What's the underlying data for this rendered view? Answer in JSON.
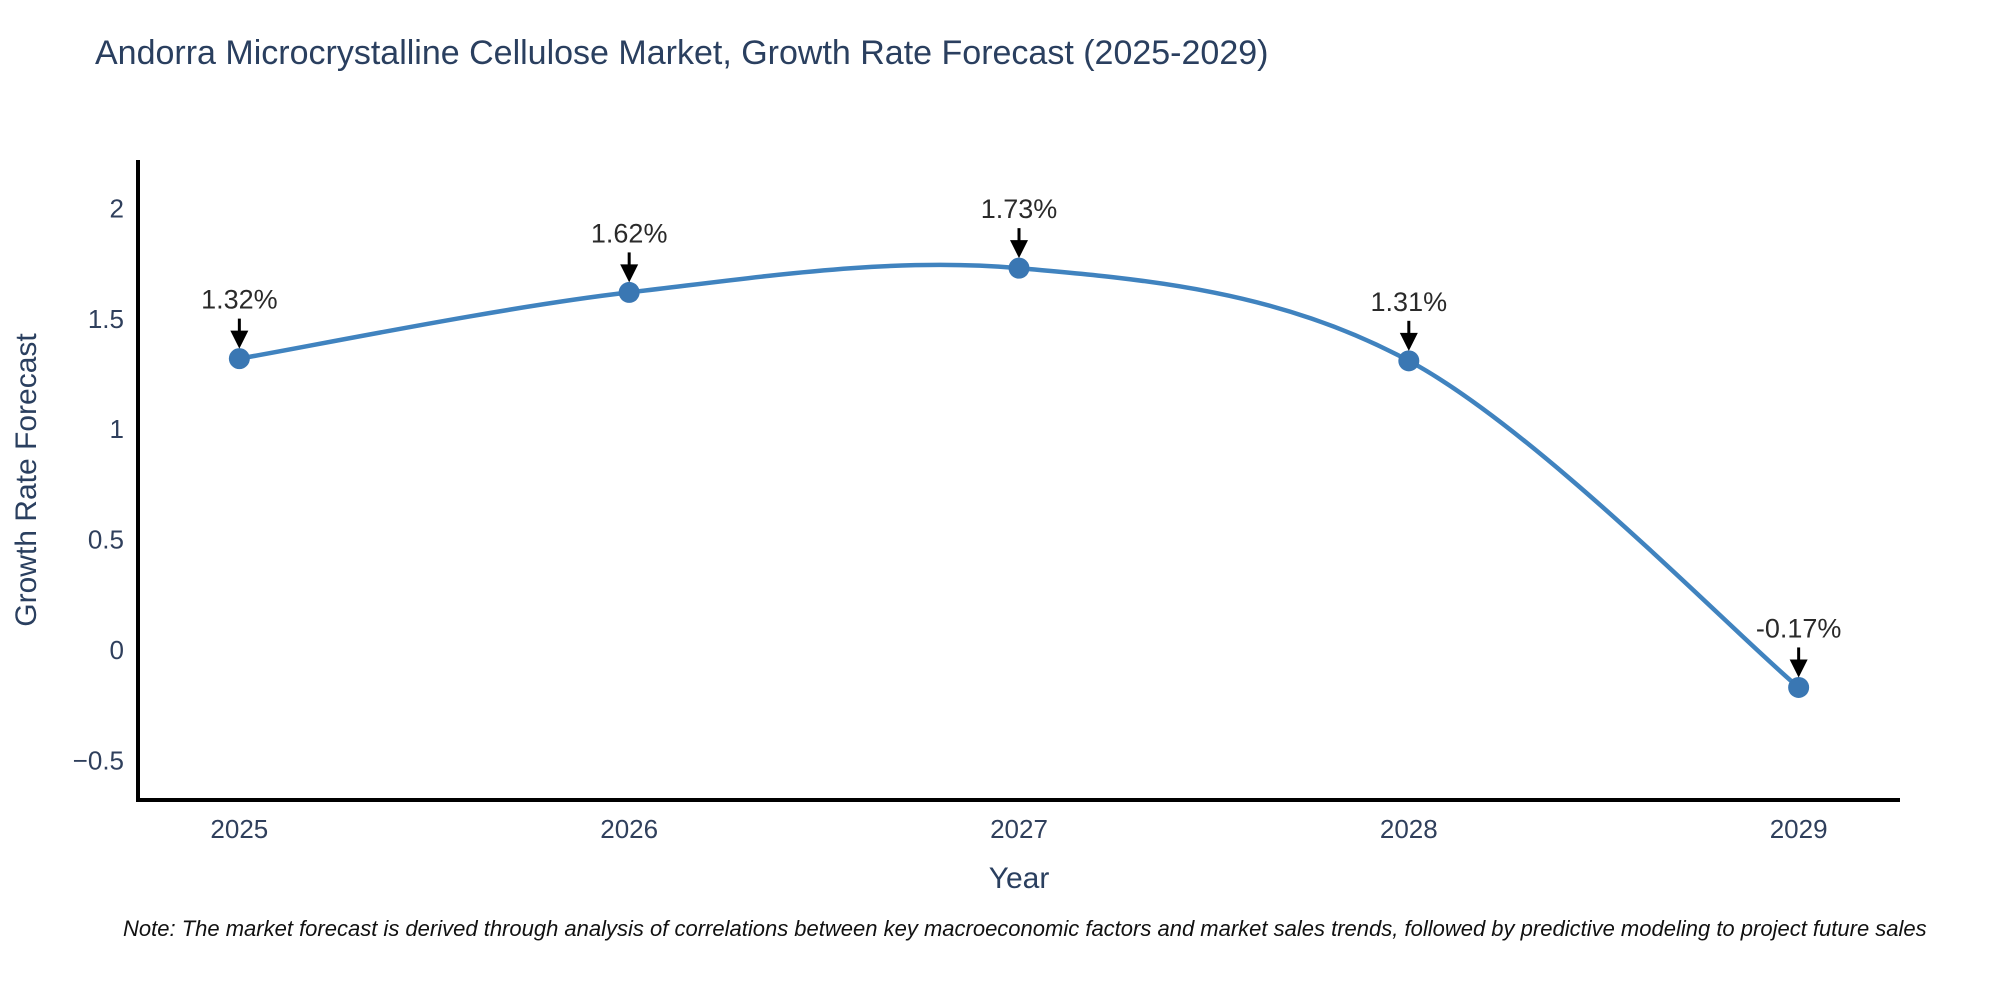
{
  "header": {
    "title": "Andorra Microcrystalline Cellulose Market, Growth Rate Forecast (2025-2029)"
  },
  "chart_data": {
    "type": "line",
    "title": "Andorra Microcrystalline Cellulose Market, Growth Rate Forecast (2025-2029)",
    "xlabel": "Year",
    "ylabel": "Growth Rate Forecast",
    "x": [
      2025,
      2026,
      2027,
      2028,
      2029
    ],
    "values": [
      1.32,
      1.62,
      1.73,
      1.31,
      -0.17
    ],
    "point_labels": [
      "1.32%",
      "1.62%",
      "1.73%",
      "1.31%",
      "-0.17%"
    ],
    "xticks": [
      "2025",
      "2026",
      "2027",
      "2028",
      "2029"
    ],
    "xtick_values": [
      2025,
      2026,
      2027,
      2028,
      2029
    ],
    "yticks": [
      "2",
      "1.5",
      "1",
      "0.5",
      "0",
      "−0.5"
    ],
    "ytick_values": [
      2,
      1.5,
      1,
      0.5,
      0,
      -0.5
    ],
    "xlim": [
      2024.74,
      2029.26
    ],
    "ylim": [
      -0.68,
      2.22
    ],
    "grid": false,
    "legend": false,
    "line_style": "spline",
    "colors": {
      "line": "#4083bf",
      "marker": "#3a77b3",
      "axis": "#000000",
      "tick_label": "#2f3f5c",
      "axis_title": "#2a3f5f",
      "chart_title": "#2a3f5f",
      "annotation_text": "#2a2a2a",
      "annotation_arrow": "#000000",
      "background": "#ffffff"
    }
  },
  "footer": {
    "note": "Note: The market forecast is derived through analysis of correlations between key macroeconomic factors and market sales trends, followed by predictive modeling to project future sales"
  }
}
